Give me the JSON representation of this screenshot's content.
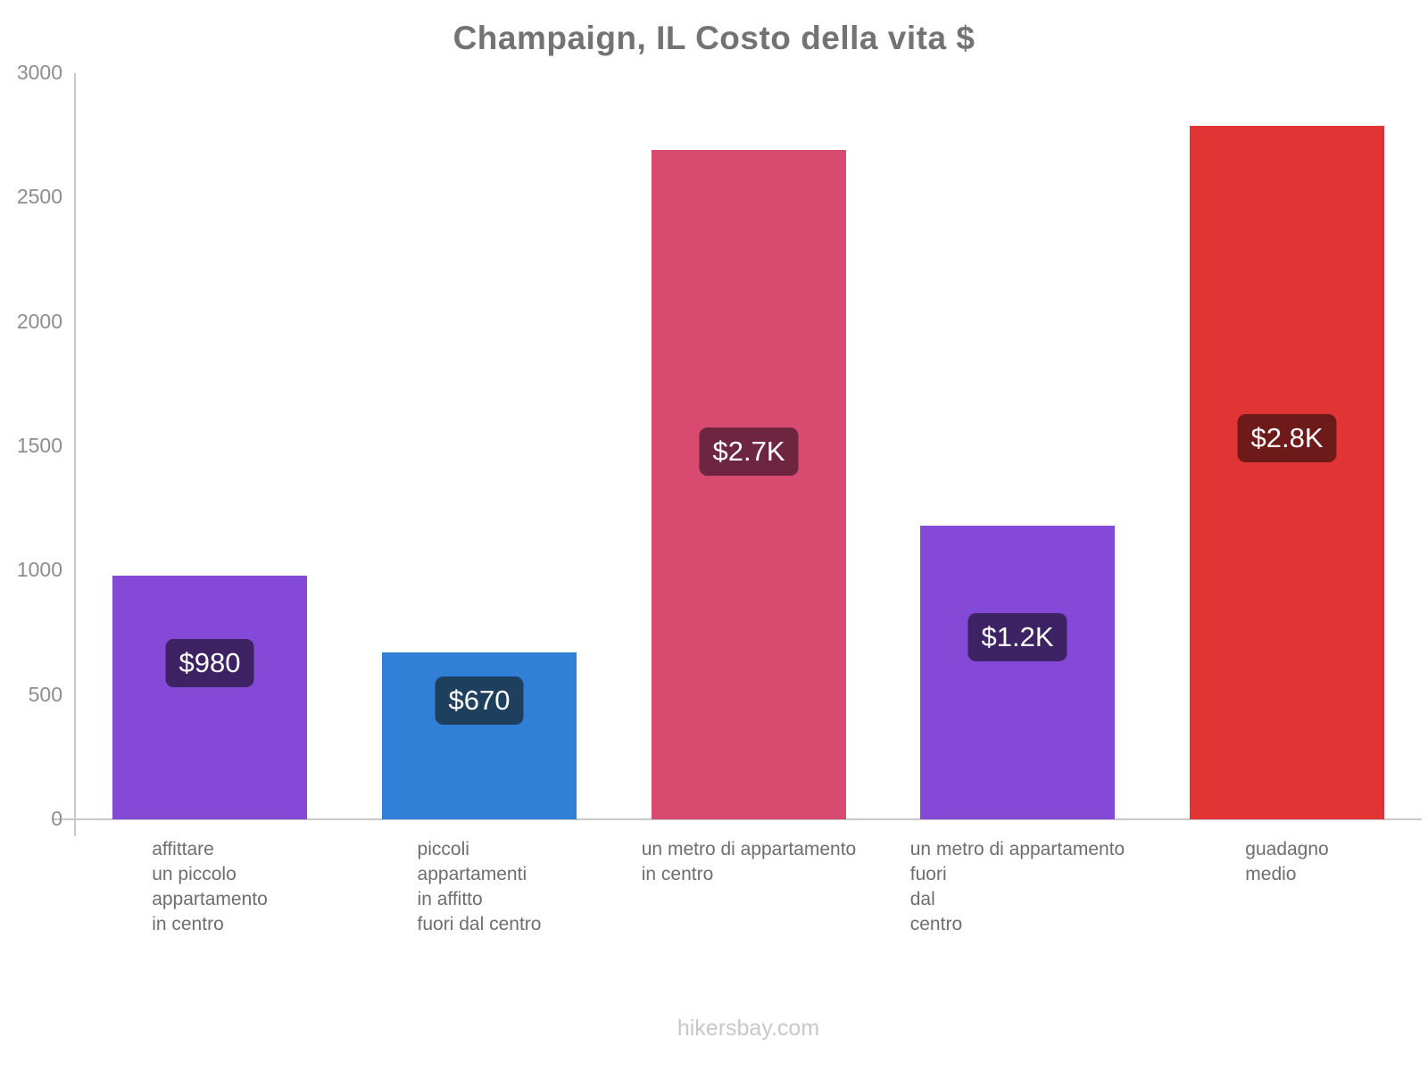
{
  "title": "Champaign, IL Costo della vita $",
  "footer": "hikersbay.com",
  "colors": {
    "axis": "#c9c9c9",
    "y_tick_text": "#8d8d8d",
    "x_label_text": "#6e6e6e",
    "title_text": "#737373",
    "footer_text": "#c8c8cc",
    "background": "#ffffff"
  },
  "chart_data": {
    "type": "bar",
    "title": "Champaign, IL Costo della vita $",
    "xlabel": "",
    "ylabel": "",
    "ylim": [
      0,
      3000
    ],
    "yticks": [
      0,
      500,
      1000,
      1500,
      2000,
      2500,
      3000
    ],
    "grid": false,
    "legend": false,
    "categories": [
      [
        "affittare",
        "un piccolo",
        "appartamento",
        "in centro"
      ],
      [
        "piccoli",
        "appartamenti",
        "in affitto",
        "fuori dal centro"
      ],
      [
        "un metro di appartamento",
        "in centro"
      ],
      [
        "un metro di appartamento",
        "fuori",
        "dal",
        "centro"
      ],
      [
        "guadagno",
        "medio"
      ]
    ],
    "values": [
      980,
      670,
      2690,
      1180,
      2790
    ],
    "value_labels": [
      "$980",
      "$670",
      "$2.7K",
      "$1.2K",
      "$2.8K"
    ],
    "bar_colors": [
      "#8449d6",
      "#3080d8",
      "#d84a70",
      "#8449d6",
      "#e13434"
    ],
    "value_label_bg": [
      "#3d2363",
      "#1e3f5e",
      "#6e2540",
      "#3d2363",
      "#6e1a1a"
    ],
    "value_label_center_frac": [
      0.36,
      0.29,
      0.45,
      0.38,
      0.45
    ]
  }
}
